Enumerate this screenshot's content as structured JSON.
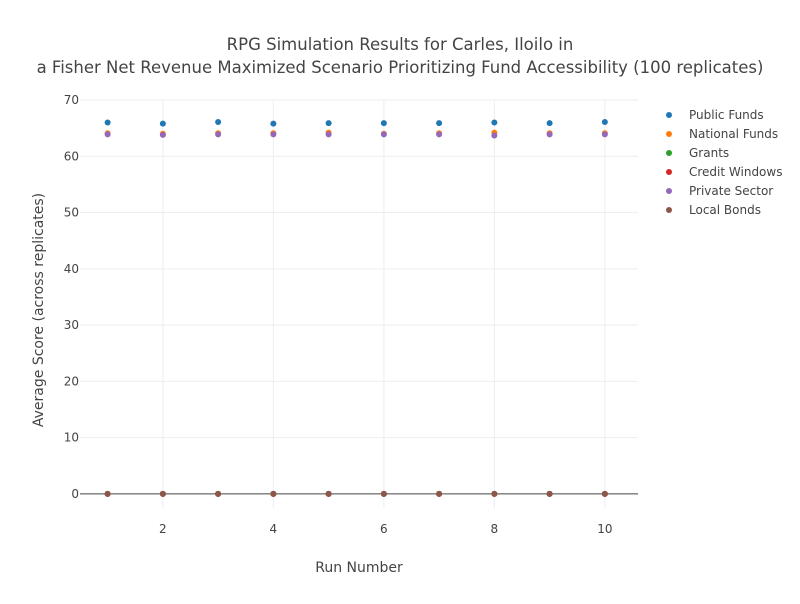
{
  "chart_data": {
    "type": "scatter",
    "title_lines": [
      "RPG Simulation Results for Carles, Iloilo in",
      "a Fisher Net Revenue Maximized Scenario Prioritizing Fund Accessibility (100 replicates)"
    ],
    "xlabel": "Run Number",
    "ylabel": "Average Score (across replicates)",
    "xlim": [
      0.5,
      10.6
    ],
    "ylim": [
      -2.5,
      70
    ],
    "x_ticks": [
      2,
      4,
      6,
      8,
      10
    ],
    "y_ticks": [
      0,
      10,
      20,
      30,
      40,
      50,
      60,
      70
    ],
    "grid": true,
    "legend_position": "top-right",
    "x": [
      1,
      2,
      3,
      4,
      5,
      6,
      7,
      8,
      9,
      10
    ],
    "series": [
      {
        "name": "Public Funds",
        "color": "#1f77b4",
        "values": [
          66.0,
          65.8,
          66.1,
          65.8,
          65.9,
          65.9,
          65.9,
          66.0,
          65.9,
          66.1
        ]
      },
      {
        "name": "National Funds",
        "color": "#ff7f0e",
        "values": [
          64.1,
          64.0,
          64.1,
          64.1,
          64.2,
          64.0,
          64.1,
          64.2,
          64.1,
          64.1
        ]
      },
      {
        "name": "Grants",
        "color": "#2ca02c",
        "values": [
          0,
          0,
          0,
          0,
          0,
          0,
          0,
          0,
          0,
          0
        ]
      },
      {
        "name": "Credit Windows",
        "color": "#d62728",
        "values": [
          0,
          0,
          0,
          0,
          0,
          0,
          0,
          0,
          0,
          0
        ]
      },
      {
        "name": "Private Sector",
        "color": "#9467bd",
        "values": [
          63.9,
          63.8,
          63.9,
          63.9,
          63.9,
          63.9,
          63.9,
          63.7,
          63.9,
          63.9
        ]
      },
      {
        "name": "Local Bonds",
        "color": "#8c564b",
        "values": [
          0,
          0,
          0,
          0,
          0,
          0,
          0,
          0,
          0,
          0
        ]
      }
    ]
  }
}
